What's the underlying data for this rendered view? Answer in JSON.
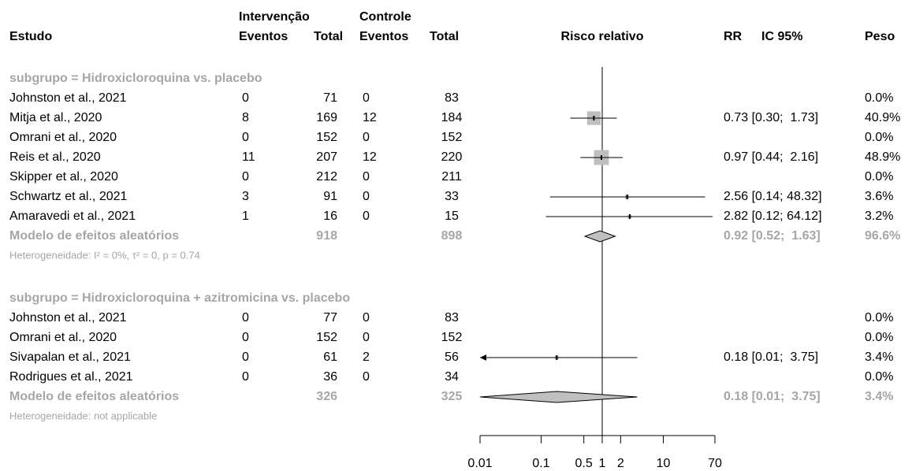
{
  "chart_data": {
    "type": "forest",
    "headers": {
      "study": "Estudo",
      "intervention": "Intervenção",
      "control": "Controle",
      "events_int": "Eventos",
      "total_int": "Total",
      "events_ctrl": "Eventos",
      "total_ctrl": "Total",
      "plot": "Risco relativo",
      "rr": "RR",
      "ci": "IC 95%",
      "weight": "Peso"
    },
    "groups": [
      {
        "label": "subgrupo = Hidroxicloroquina vs. placebo",
        "studies": [
          {
            "name": "Johnston et al., 2021",
            "e_int": 0,
            "n_int": 71,
            "e_ctrl": 0,
            "n_ctrl": 83,
            "weight": 0,
            "weight_label": "0.0%"
          },
          {
            "name": "Mitja et al., 2020",
            "e_int": 8,
            "n_int": 169,
            "e_ctrl": 12,
            "n_ctrl": 184,
            "rr": 0.73,
            "ci": [
              0.3,
              1.73
            ],
            "rr_label": "0.73 [0.30;  1.73]",
            "weight": 40.9,
            "weight_label": "40.9%"
          },
          {
            "name": "Omrani et al., 2020",
            "e_int": 0,
            "n_int": 152,
            "e_ctrl": 0,
            "n_ctrl": 152,
            "weight": 0,
            "weight_label": "0.0%"
          },
          {
            "name": "Reis et al., 2020",
            "e_int": 11,
            "n_int": 207,
            "e_ctrl": 12,
            "n_ctrl": 220,
            "rr": 0.97,
            "ci": [
              0.44,
              2.16
            ],
            "rr_label": "0.97 [0.44;  2.16]",
            "weight": 48.9,
            "weight_label": "48.9%"
          },
          {
            "name": "Skipper et al., 2020",
            "e_int": 0,
            "n_int": 212,
            "e_ctrl": 0,
            "n_ctrl": 211,
            "weight": 0,
            "weight_label": "0.0%"
          },
          {
            "name": "Schwartz et al., 2021",
            "e_int": 3,
            "n_int": 91,
            "e_ctrl": 0,
            "n_ctrl": 33,
            "rr": 2.56,
            "ci": [
              0.14,
              48.32
            ],
            "rr_label": "2.56 [0.14; 48.32]",
            "weight": 3.6,
            "weight_label": "3.6%"
          },
          {
            "name": "Amaravedi et al., 2021",
            "e_int": 1,
            "n_int": 16,
            "e_ctrl": 0,
            "n_ctrl": 15,
            "rr": 2.82,
            "ci": [
              0.12,
              64.12
            ],
            "rr_label": "2.82 [0.12; 64.12]",
            "weight": 3.2,
            "weight_label": "3.2%"
          }
        ],
        "pooled": {
          "name": "Modelo de efeitos aleatórios",
          "n_int": 918,
          "n_ctrl": 898,
          "rr": 0.92,
          "ci": [
            0.52,
            1.63
          ],
          "rr_label": "0.92 [0.52;  1.63]",
          "weight": 96.6,
          "weight_label": "96.6%"
        },
        "heterogeneity": "Heterogeneidade: I² = 0%, τ² = 0, p = 0.74"
      },
      {
        "label": "subgrupo = Hidroxicloroquina + azitromicina vs. placebo",
        "studies": [
          {
            "name": "Johnston et al., 2021",
            "e_int": 0,
            "n_int": 77,
            "e_ctrl": 0,
            "n_ctrl": 83,
            "weight": 0,
            "weight_label": "0.0%"
          },
          {
            "name": "Omrani et al., 2020",
            "e_int": 0,
            "n_int": 152,
            "e_ctrl": 0,
            "n_ctrl": 152,
            "weight": 0,
            "weight_label": "0.0%"
          },
          {
            "name": "Sivapalan et al., 2021",
            "e_int": 0,
            "n_int": 61,
            "e_ctrl": 2,
            "n_ctrl": 56,
            "rr": 0.18,
            "ci": [
              0.01,
              3.75
            ],
            "rr_label": "0.18 [0.01;  3.75]",
            "weight": 3.4,
            "weight_label": "3.4%"
          },
          {
            "name": "Rodrigues et al., 2021",
            "e_int": 0,
            "n_int": 36,
            "e_ctrl": 0,
            "n_ctrl": 34,
            "weight": 0,
            "weight_label": "0.0%"
          }
        ],
        "pooled": {
          "name": "Modelo de efeitos aleatórios",
          "n_int": 326,
          "n_ctrl": 325,
          "rr": 0.18,
          "ci": [
            0.01,
            3.75
          ],
          "rr_label": "0.18 [0.01;  3.75]",
          "weight": 3.4,
          "weight_label": "3.4%"
        },
        "heterogeneity": "Heterogeneidade: not applicable"
      }
    ],
    "xlim": [
      0.01,
      70
    ],
    "xticks": [
      0.01,
      0.1,
      0.5,
      1,
      2,
      10,
      70
    ],
    "log_x": true,
    "reference": 1,
    "square_color": "#bfbfbf",
    "diamond_color": "#c0c0c0",
    "muted_color": "#a6a6a6"
  }
}
